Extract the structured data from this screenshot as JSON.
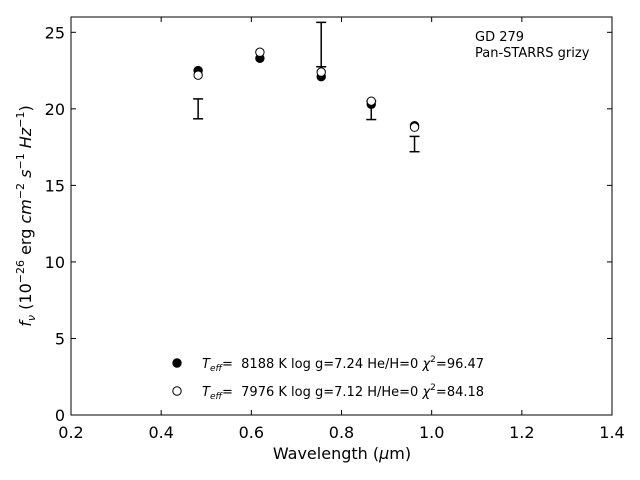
{
  "chart_data": {
    "type": "scatter",
    "xlabel": "Wavelength (μm)",
    "ylabel": "f_ν (10^-26 erg cm^-2 s^-1 Hz^-1)",
    "xlim": [
      0.2,
      1.4
    ],
    "ylim": [
      0,
      26
    ],
    "xticks": [
      0.2,
      0.4,
      0.6,
      0.8,
      1.0,
      1.2,
      1.4
    ],
    "yticks": [
      0,
      5,
      10,
      15,
      20,
      25
    ],
    "xtick_labels": [
      "0.2",
      "0.4",
      "0.6",
      "0.8",
      "1.0",
      "1.2",
      "1.4"
    ],
    "ytick_labels": [
      "0",
      "5",
      "10",
      "15",
      "20",
      "25"
    ],
    "annotation": [
      "GD 279",
      "Pan-STARRS grizy"
    ],
    "observed": {
      "x": [
        0.482,
        0.755,
        0.866,
        0.962
      ],
      "y": [
        20.0,
        24.2,
        19.9,
        17.7
      ],
      "yerr": [
        0.65,
        1.45,
        0.6,
        0.5
      ]
    },
    "series": [
      {
        "marker": "filled",
        "label": "T_eff= 8188 K log g=7.24 He/H=0 χ2=96.47",
        "teff": "8188",
        "logg": "7.24",
        "comp": "He/H=0",
        "chi2": "96.47",
        "x": [
          0.482,
          0.619,
          0.755,
          0.866,
          0.962
        ],
        "y": [
          22.5,
          23.3,
          22.1,
          20.3,
          18.9
        ]
      },
      {
        "marker": "open",
        "label": "T_eff= 7976 K log g=7.12 H/He=0 χ2=84.18",
        "teff": "7976",
        "logg": "7.12",
        "comp": "H/He=0",
        "chi2": "84.18",
        "x": [
          0.482,
          0.619,
          0.755,
          0.866,
          0.962
        ],
        "y": [
          22.2,
          23.7,
          22.4,
          20.5,
          18.8
        ]
      }
    ]
  }
}
